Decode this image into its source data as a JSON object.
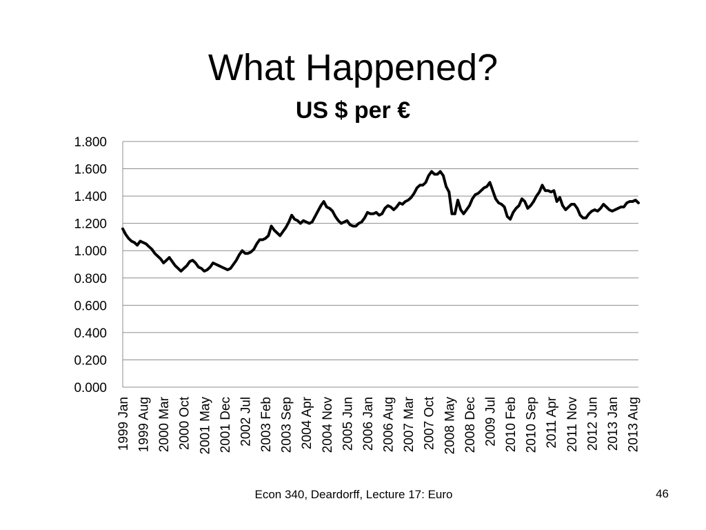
{
  "slide": {
    "title": "What Happened?",
    "footer": "Econ 340, Deardorff, Lecture 17: Euro",
    "page_number": "46"
  },
  "chart_data": {
    "type": "line",
    "title": "US $ per €",
    "xlabel": "",
    "ylabel": "",
    "ylim": [
      0,
      1.8
    ],
    "yticks": [
      "0.000",
      "0.200",
      "0.400",
      "0.600",
      "0.800",
      "1.000",
      "1.200",
      "1.400",
      "1.600",
      "1.800"
    ],
    "x_ticks": [
      "1999 Jan",
      "1999 Aug",
      "2000 Mar",
      "2000 Oct",
      "2001 May",
      "2001 Dec",
      "2002 Jul",
      "2003 Feb",
      "2003 Sep",
      "2004 Apr",
      "2004 Nov",
      "2005 Jun",
      "2006 Jan",
      "2006 Aug",
      "2007 Mar",
      "2007 Oct",
      "2008 May",
      "2008 Dec",
      "2009 Jul",
      "2010 Feb",
      "2010 Sep",
      "2011 Apr",
      "2011 Nov",
      "2012 Jun",
      "2013 Jan",
      "2013 Aug"
    ],
    "grid": true,
    "legend": "none",
    "line_color": "#000000",
    "series": [
      {
        "values": [
          1.16,
          1.12,
          1.09,
          1.07,
          1.06,
          1.04,
          1.07,
          1.06,
          1.05,
          1.03,
          1.01,
          0.98,
          0.96,
          0.94,
          0.91,
          0.93,
          0.95,
          0.92,
          0.89,
          0.87,
          0.85,
          0.87,
          0.89,
          0.92,
          0.93,
          0.91,
          0.88,
          0.87,
          0.85,
          0.86,
          0.88,
          0.91,
          0.9,
          0.89,
          0.88,
          0.87,
          0.86,
          0.87,
          0.9,
          0.93,
          0.97,
          1.0,
          0.98,
          0.98,
          0.99,
          1.01,
          1.05,
          1.08,
          1.08,
          1.09,
          1.11,
          1.18,
          1.15,
          1.13,
          1.11,
          1.14,
          1.17,
          1.21,
          1.26,
          1.23,
          1.22,
          1.2,
          1.22,
          1.21,
          1.2,
          1.21,
          1.25,
          1.29,
          1.33,
          1.36,
          1.32,
          1.31,
          1.29,
          1.25,
          1.22,
          1.2,
          1.21,
          1.22,
          1.19,
          1.18,
          1.18,
          1.2,
          1.21,
          1.24,
          1.28,
          1.27,
          1.27,
          1.28,
          1.26,
          1.27,
          1.31,
          1.33,
          1.32,
          1.3,
          1.32,
          1.35,
          1.34,
          1.36,
          1.37,
          1.39,
          1.42,
          1.46,
          1.48,
          1.48,
          1.5,
          1.55,
          1.58,
          1.56,
          1.56,
          1.58,
          1.55,
          1.47,
          1.43,
          1.27,
          1.27,
          1.37,
          1.3,
          1.27,
          1.3,
          1.33,
          1.38,
          1.41,
          1.42,
          1.44,
          1.46,
          1.47,
          1.5,
          1.44,
          1.38,
          1.35,
          1.34,
          1.32,
          1.25,
          1.23,
          1.28,
          1.31,
          1.33,
          1.38,
          1.36,
          1.31,
          1.33,
          1.36,
          1.4,
          1.43,
          1.48,
          1.44,
          1.44,
          1.43,
          1.44,
          1.36,
          1.39,
          1.33,
          1.3,
          1.32,
          1.34,
          1.34,
          1.31,
          1.26,
          1.24,
          1.24,
          1.27,
          1.29,
          1.3,
          1.29,
          1.31,
          1.34,
          1.32,
          1.3,
          1.29,
          1.3,
          1.31,
          1.32,
          1.32,
          1.35,
          1.36,
          1.36,
          1.37,
          1.35
        ]
      }
    ]
  }
}
